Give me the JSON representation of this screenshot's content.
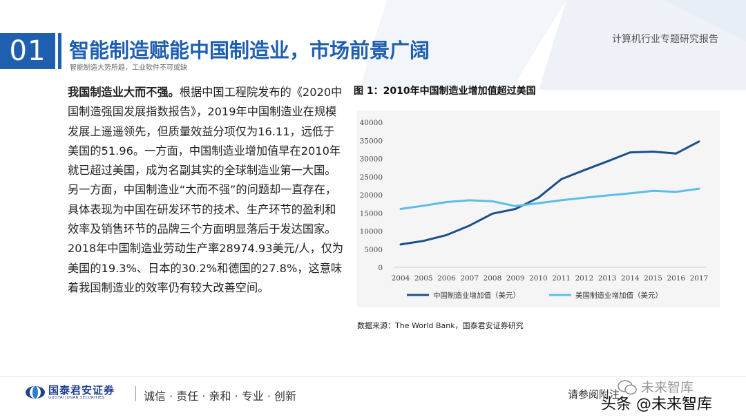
{
  "header": {
    "section_number": "01",
    "title": "智能制造赋能中国制造业，市场前景广阔",
    "subtitle": "智能制造大势所趋，工业软件不可或缺",
    "report_label": "计算机行业专题研究报告"
  },
  "body": {
    "lead": "我国制造业大而不强。",
    "paragraph": "根据中国工程院发布的《2020中国制造强国发展指数报告》，2019年中国制造业在规模发展上遥遥领先，但质量效益分项仅为16.11，远低于美国的51.96。一方面，中国制造业增加值早在2010年就已超过美国，成为名副其实的全球制造业第一大国。另一方面，中国制造业“大而不强”的问题却一直存在，具体表现为中国在研发环节的技术、生产环节的盈利和效率及销售环节的品牌三个方面明显落后于发达国家。2018年中国制造业劳动生产率28974.93美元/人，仅为美国的19.3%、日本的30.2%和德国的27.8%，这意味着我国制造业的效率仍有较大改善空间。"
  },
  "chart_title": "图 1：2010年中国制造业增加值超过美国",
  "source_note": "数据来源：The World Bank，国泰君安证券研究",
  "chart_data": {
    "type": "line",
    "x": [
      "2004",
      "2005",
      "2006",
      "2007",
      "2008",
      "2009",
      "2010",
      "2011",
      "2012",
      "2013",
      "2014",
      "2015",
      "2016",
      "2017"
    ],
    "ylim": [
      0,
      40000
    ],
    "yticks": [
      0,
      5000,
      10000,
      15000,
      20000,
      25000,
      30000,
      35000,
      40000
    ],
    "series": [
      {
        "name": "中国制造业增加值（美元）",
        "color": "#1b4f8a",
        "values": [
          6300,
          7300,
          8900,
          11500,
          14800,
          16100,
          19200,
          24300,
          26800,
          29200,
          31700,
          31900,
          31400,
          34700
        ]
      },
      {
        "name": "美国制造业增加值（美元）",
        "color": "#5bbde8",
        "values": [
          16100,
          17000,
          18000,
          18500,
          18200,
          16900,
          17700,
          18500,
          19200,
          19800,
          20400,
          21100,
          20800,
          21700
        ]
      }
    ],
    "grid": false,
    "legend_position": "bottom"
  },
  "footer": {
    "company_cn": "国泰君安证券",
    "company_en": "GUOTAI JUNAN SECURITIES",
    "slogan": "诚信 · 责任 · 亲和 · 专业 · 创新",
    "right_text": "请参阅附注",
    "watermark_top": "未来智库",
    "watermark_bottom": "头条 @未来智库"
  }
}
